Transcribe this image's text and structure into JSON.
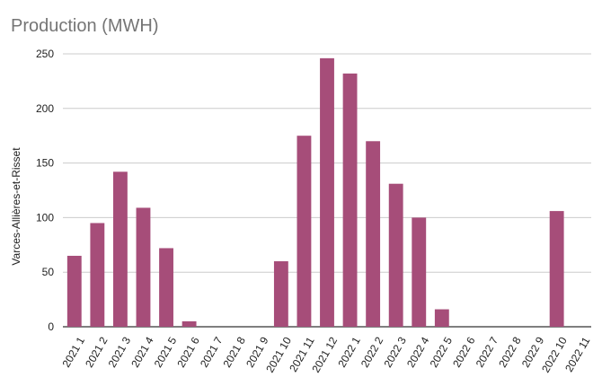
{
  "chart_data": {
    "type": "bar",
    "title": "Production (MWH)",
    "ylabel": "Varces-Allières-et-Risset",
    "xlabel": "",
    "ylim": [
      0,
      250
    ],
    "yticks": [
      0,
      50,
      100,
      150,
      200,
      250
    ],
    "grid": true,
    "color": "#a64d79",
    "categories": [
      "2021 1",
      "2021 2",
      "2021 3",
      "2021 4",
      "2021 5",
      "2021 6",
      "2021 7",
      "2021 8",
      "2021 9",
      "2021 10",
      "2021 11",
      "2021 12",
      "2022 1",
      "2022 2",
      "2022 3",
      "2022 4",
      "2022 5",
      "2022 6",
      "2022 7",
      "2022 8",
      "2022 9",
      "2022 10",
      "2022 11"
    ],
    "values": [
      65,
      95,
      142,
      109,
      72,
      5,
      0,
      0,
      0,
      60,
      175,
      246,
      232,
      170,
      131,
      100,
      16,
      0,
      0,
      0,
      0,
      106,
      0
    ]
  }
}
